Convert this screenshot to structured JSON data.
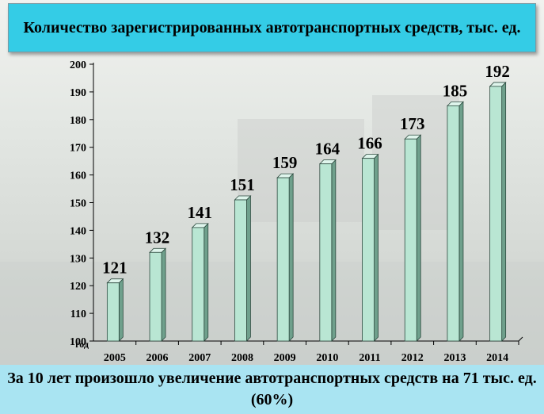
{
  "header": {
    "title": "Количество зарегистрированных автотранспортных средств, тыс. ед."
  },
  "footer": {
    "text": "За 10 лет произошло увеличение автотранспортных средств на 71 тыс. ед. (60%)"
  },
  "colors": {
    "title_bg": "#34cce6",
    "footer_bg": "#a9e4f2",
    "bar_face": "#b9e6d3",
    "bar_side": "#6fa08c",
    "bar_top": "#dff5ec"
  },
  "chart_data": {
    "type": "bar",
    "title": "Количество зарегистрированных автотранспортных средств, тыс. ед.",
    "xlabel": "год",
    "ylabel": "",
    "ylim": [
      100,
      200
    ],
    "yticks": [
      100,
      110,
      120,
      130,
      140,
      150,
      160,
      170,
      180,
      190,
      200
    ],
    "categories": [
      "2005",
      "2006",
      "2007",
      "2008",
      "2009",
      "2010",
      "2011",
      "2012",
      "2013",
      "2014"
    ],
    "values": [
      121,
      132,
      141,
      151,
      159,
      164,
      166,
      173,
      185,
      192
    ],
    "grid": false,
    "legend": "none",
    "data_labels": true
  }
}
